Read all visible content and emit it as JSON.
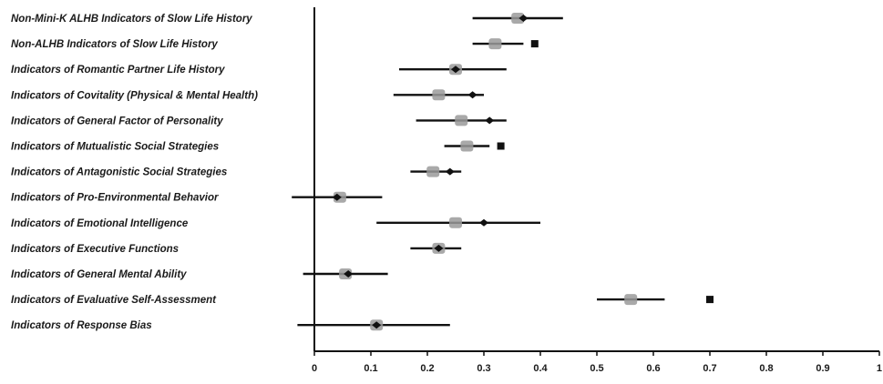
{
  "chart_data": {
    "type": "forest",
    "title": "",
    "xlabel": "",
    "ylabel": "",
    "xlim": [
      0,
      1
    ],
    "x_ticks": [
      "0",
      "0.1",
      "0.2",
      "0.3",
      "0.4",
      "0.5",
      "0.6",
      "0.7",
      "0.8",
      "0.9",
      "1"
    ],
    "grid": false,
    "legend": "none",
    "colors": {
      "ci_line": "#111111",
      "estimate": "#111111",
      "alt_estimate": "#9a9a9a",
      "axis": "#111111"
    },
    "categories": [
      "Non-Mini-K ALHB Indicators of Slow Life History",
      "Non-ALHB Indicators of Slow Life History",
      "Indicators of Romantic Partner Life History",
      "Indicators of Covitality (Physical & Mental Health)",
      "Indicators of General Factor of Personality",
      "Indicators of Mutualistic Social Strategies",
      "Indicators of Antagonistic Social Strategies",
      "Indicators of Pro-Environmental Behavior",
      "Indicators of Emotional Intelligence",
      "Indicators of Executive Functions",
      "Indicators of General Mental Ability",
      "Indicators of Evaluative Self-Assessment",
      "Indicators of Response Bias"
    ],
    "series": [
      {
        "values": [
          0.37,
          0.39,
          0.25,
          0.28,
          0.31,
          0.33,
          0.24,
          0.04,
          0.3,
          0.22,
          0.06,
          0.7,
          0.11
        ],
        "ci_low": [
          0.28,
          null,
          0.15,
          0.14,
          0.18,
          null,
          0.17,
          -0.04,
          0.11,
          0.17,
          -0.02,
          null,
          -0.03
        ],
        "ci_high": [
          0.44,
          null,
          0.34,
          0.3,
          0.34,
          null,
          0.26,
          0.12,
          0.4,
          0.26,
          0.13,
          null,
          0.24
        ]
      },
      {
        "values": [
          0.36,
          0.32,
          0.25,
          0.22,
          0.26,
          0.27,
          0.21,
          0.045,
          0.25,
          0.22,
          0.055,
          0.56,
          0.11
        ],
        "ci_low": [
          null,
          0.28,
          null,
          null,
          null,
          0.23,
          null,
          null,
          null,
          null,
          null,
          0.5,
          null
        ],
        "ci_high": [
          null,
          0.37,
          null,
          null,
          null,
          0.31,
          null,
          null,
          null,
          null,
          null,
          0.62,
          null
        ]
      }
    ]
  }
}
